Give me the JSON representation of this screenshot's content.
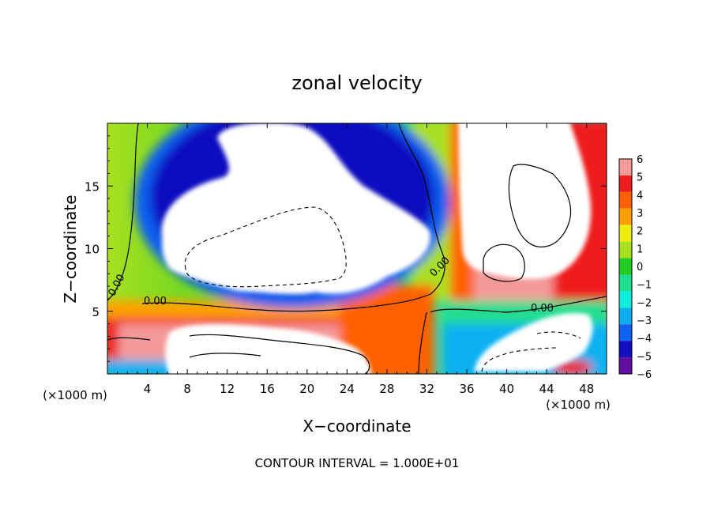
{
  "chart_data": {
    "type": "heatmap",
    "title": "zonal velocity",
    "xlabel": "X−coordinate",
    "ylabel": "Z−coordinate",
    "x_unit": "(×1000 m)",
    "x_range": [
      0,
      50
    ],
    "y_range": [
      0,
      20
    ],
    "x_ticks": [
      4,
      8,
      12,
      16,
      20,
      24,
      28,
      32,
      36,
      40,
      44,
      48
    ],
    "y_ticks": [
      5,
      10,
      15
    ],
    "colorbar": {
      "levels": [
        6,
        5,
        4,
        3,
        2,
        1,
        0,
        -1,
        -2,
        -3,
        -4,
        -5,
        -6
      ],
      "labels": [
        "6",
        "5",
        "4",
        "3",
        "2",
        "1",
        "0",
        "−1",
        "−2",
        "−3",
        "−4",
        "−5",
        "−6"
      ],
      "colors": [
        "#f49a9a",
        "#ee1c1c",
        "#ff6000",
        "#ffa000",
        "#eeee10",
        "#a8e020",
        "#22cc22",
        "#20dd90",
        "#10eedd",
        "#10b0f0",
        "#1060f0",
        "#1010c0",
        "#6010a0"
      ]
    },
    "contour_labels": [
      "0.00",
      "0.00",
      "0.00",
      "0.00"
    ],
    "footer": "CONTOUR INTERVAL = 1.000E+01",
    "grid": false
  }
}
